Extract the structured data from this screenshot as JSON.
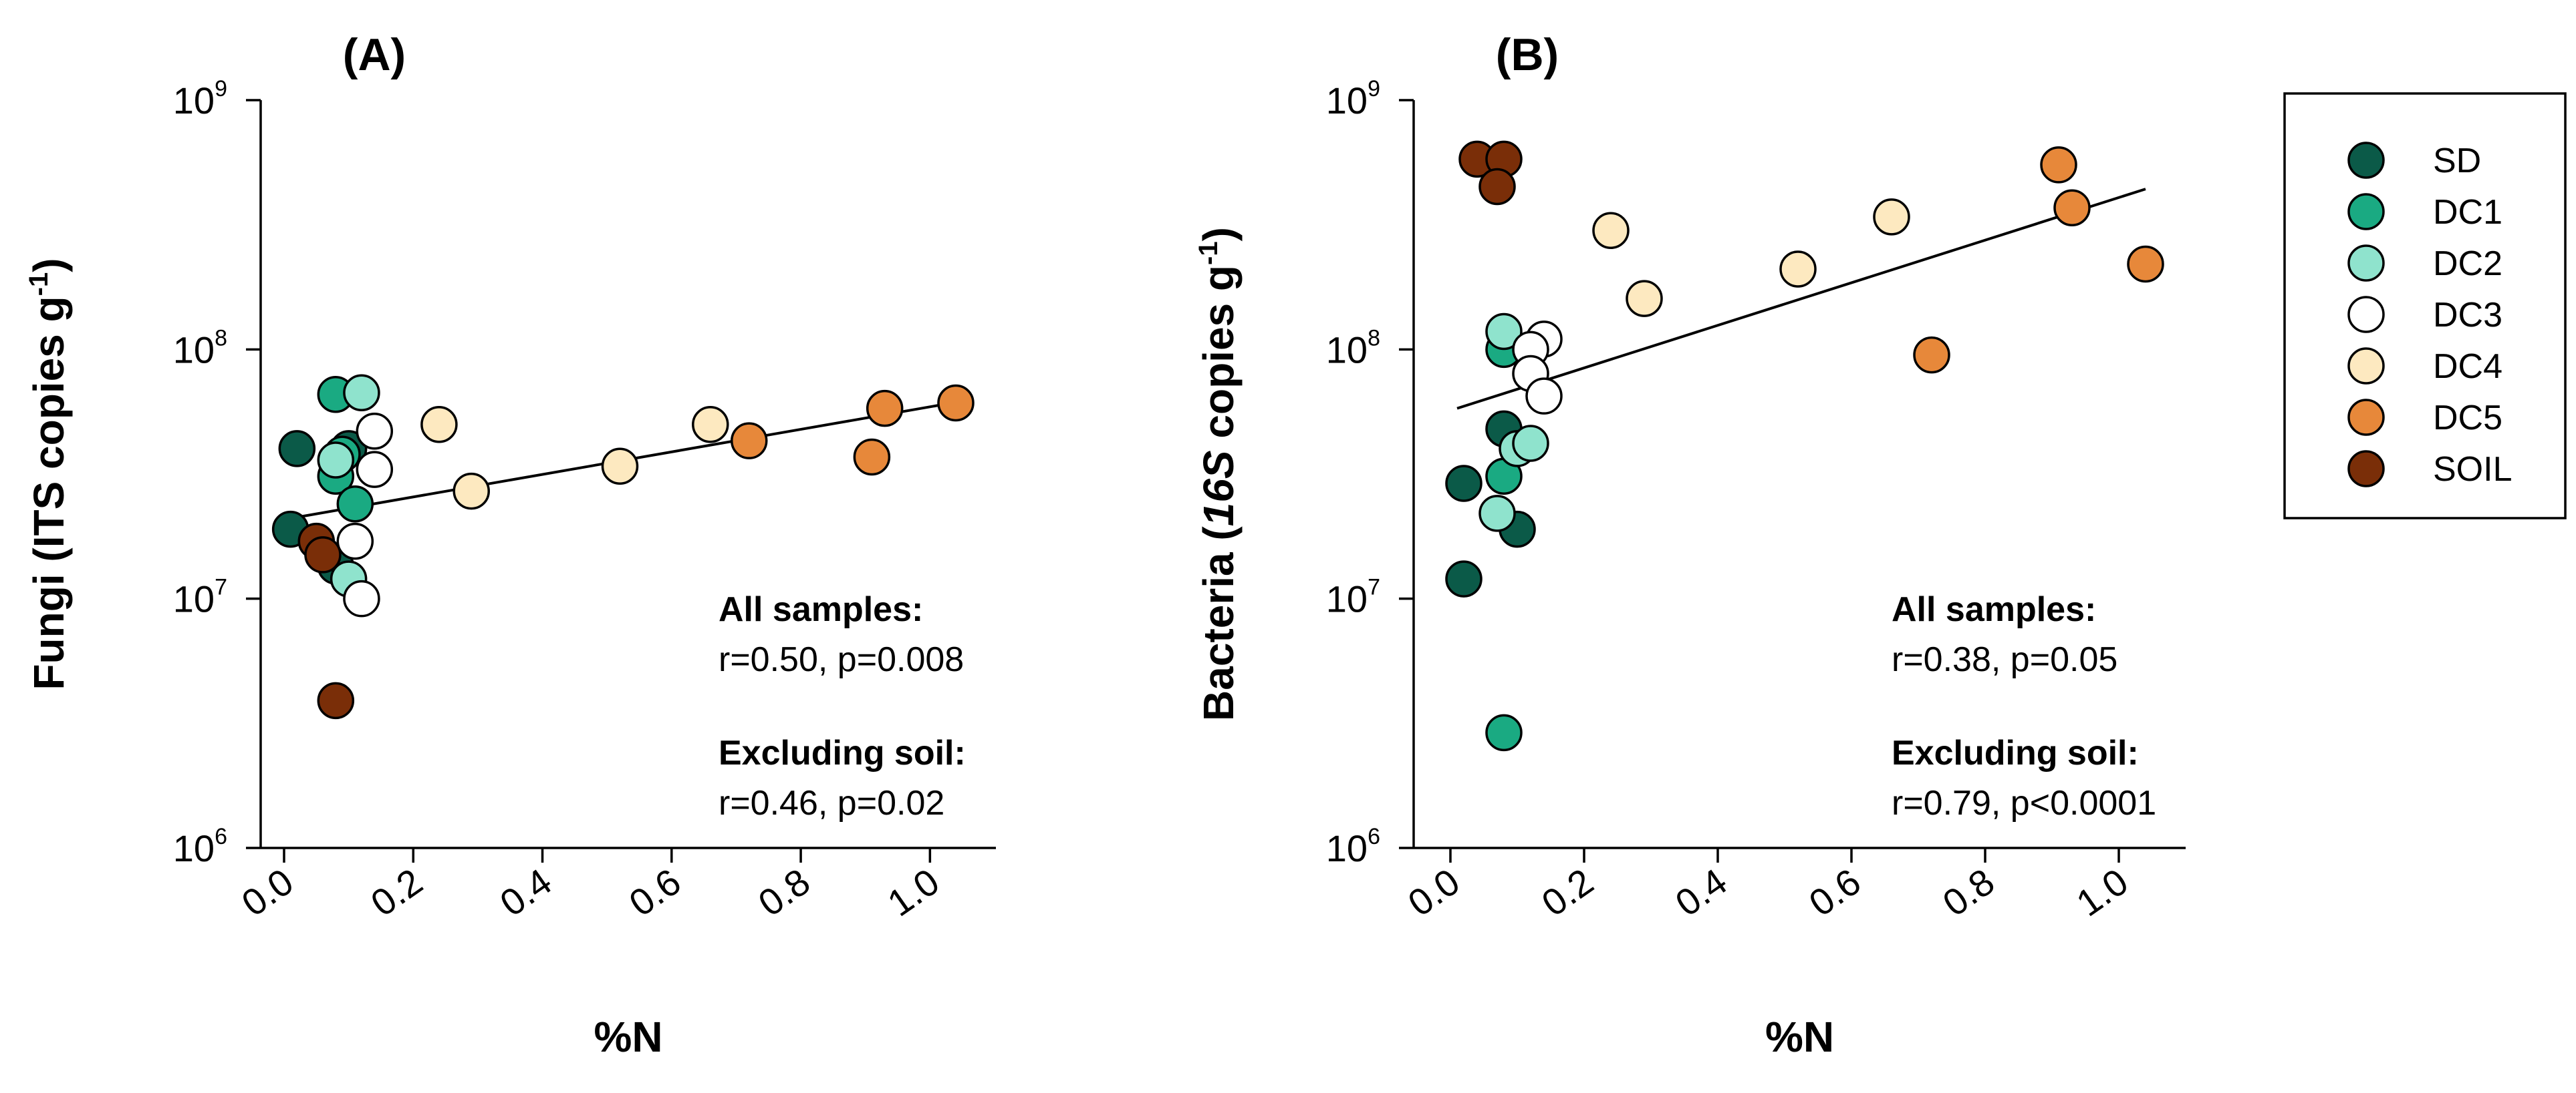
{
  "chart_data": [
    {
      "type": "scatter",
      "panel_label": "(A)",
      "ylabel": "Fungi (ITS copies g-1)",
      "ylabel_parts": [
        "Fungi (",
        "ITS",
        " copies g",
        "-1",
        ")"
      ],
      "xlabel": "%N",
      "xlim": [
        0,
        1.05
      ],
      "xticks": [
        "0.0",
        "0.2",
        "0.4",
        "0.6",
        "0.8",
        "1.0"
      ],
      "ylog": true,
      "ylim": [
        1000000,
        1000000000
      ],
      "yticks": [
        {
          "base": "10",
          "exp": "6"
        },
        {
          "base": "10",
          "exp": "7"
        },
        {
          "base": "10",
          "exp": "8"
        },
        {
          "base": "10",
          "exp": "9"
        }
      ],
      "fit_line": {
        "x": [
          0.01,
          1.05
        ],
        "y": [
          21000000,
          62000000
        ]
      },
      "stats": [
        {
          "heading": "All samples:",
          "text": "r=0.50, p=0.008"
        },
        {
          "heading": "Excluding soil:",
          "text": "r=0.46, p=0.02"
        }
      ],
      "series": [
        {
          "name": "SD",
          "points": [
            [
              0.02,
              40000000
            ],
            [
              0.01,
              19000000
            ],
            [
              0.1,
              40000000
            ],
            [
              0.08,
              13500000
            ]
          ]
        },
        {
          "name": "DC1",
          "points": [
            [
              0.08,
              66000000
            ],
            [
              0.09,
              38000000
            ],
            [
              0.08,
              31000000
            ],
            [
              0.11,
              24000000
            ]
          ]
        },
        {
          "name": "DC2",
          "points": [
            [
              0.12,
              67000000
            ],
            [
              0.08,
              36000000
            ],
            [
              0.1,
              12000000
            ]
          ]
        },
        {
          "name": "DC3",
          "points": [
            [
              0.14,
              47000000
            ],
            [
              0.14,
              33000000
            ],
            [
              0.11,
              17000000
            ],
            [
              0.12,
              10000000
            ]
          ]
        },
        {
          "name": "DC4",
          "points": [
            [
              0.24,
              50000000
            ],
            [
              0.29,
              27000000
            ],
            [
              0.52,
              34000000
            ],
            [
              0.66,
              50000000
            ]
          ]
        },
        {
          "name": "DC5",
          "points": [
            [
              0.72,
              43000000
            ],
            [
              0.93,
              58000000
            ],
            [
              0.91,
              37000000
            ],
            [
              1.04,
              61000000
            ]
          ]
        },
        {
          "name": "SOIL",
          "points": [
            [
              0.05,
              17000000
            ],
            [
              0.06,
              15000000
            ],
            [
              0.08,
              3900000
            ]
          ]
        }
      ]
    },
    {
      "type": "scatter",
      "panel_label": "(B)",
      "ylabel": "Bacteria (16S copies g-1)",
      "ylabel_parts": [
        "Bacteria (",
        "16S",
        " copies g",
        "-1",
        ")"
      ],
      "xlabel": "%N",
      "xlim": [
        0,
        1.05
      ],
      "xticks": [
        "0.0",
        "0.2",
        "0.4",
        "0.6",
        "0.8",
        "1.0"
      ],
      "ylog": true,
      "ylim": [
        1000000,
        1000000000
      ],
      "yticks": [
        {
          "base": "10",
          "exp": "6"
        },
        {
          "base": "10",
          "exp": "7"
        },
        {
          "base": "10",
          "exp": "8"
        },
        {
          "base": "10",
          "exp": "9"
        }
      ],
      "fit_line": {
        "x": [
          0.01,
          1.04
        ],
        "y": [
          58000000,
          440000000
        ]
      },
      "stats": [
        {
          "heading": "All samples:",
          "text": "r=0.38, p=0.05"
        },
        {
          "heading": "Excluding soil:",
          "text": "r=0.79, p<0.0001"
        }
      ],
      "series": [
        {
          "name": "SD",
          "points": [
            [
              0.02,
              29000000
            ],
            [
              0.02,
              12000000
            ],
            [
              0.08,
              48000000
            ],
            [
              0.1,
              19000000
            ]
          ]
        },
        {
          "name": "DC1",
          "points": [
            [
              0.08,
              100000000
            ],
            [
              0.08,
              31000000
            ],
            [
              0.08,
              2900000
            ]
          ]
        },
        {
          "name": "DC2",
          "points": [
            [
              0.08,
              118000000
            ],
            [
              0.1,
              40000000
            ],
            [
              0.12,
              42000000
            ],
            [
              0.07,
              22000000
            ]
          ]
        },
        {
          "name": "DC3",
          "points": [
            [
              0.14,
              110000000
            ],
            [
              0.12,
              100000000
            ],
            [
              0.12,
              80000000
            ],
            [
              0.14,
              65000000
            ]
          ]
        },
        {
          "name": "DC4",
          "points": [
            [
              0.24,
              300000000
            ],
            [
              0.29,
              160000000
            ],
            [
              0.52,
              210000000
            ],
            [
              0.66,
              340000000
            ]
          ]
        },
        {
          "name": "DC5",
          "points": [
            [
              0.91,
              550000000
            ],
            [
              0.93,
              370000000
            ],
            [
              1.04,
              220000000
            ],
            [
              0.72,
              95000000
            ]
          ]
        },
        {
          "name": "SOIL",
          "points": [
            [
              0.04,
              580000000
            ],
            [
              0.08,
              580000000
            ],
            [
              0.07,
              450000000
            ]
          ]
        }
      ]
    }
  ],
  "legend": {
    "items": [
      {
        "name": "SD",
        "color": "#0b5a48"
      },
      {
        "name": "DC1",
        "color": "#1aaa82"
      },
      {
        "name": "DC2",
        "color": "#8fe3cd"
      },
      {
        "name": "DC3",
        "color": "#ffffff"
      },
      {
        "name": "DC4",
        "color": "#fde9c0"
      },
      {
        "name": "DC5",
        "color": "#e7883a"
      },
      {
        "name": "SOIL",
        "color": "#7a2e08"
      }
    ]
  }
}
